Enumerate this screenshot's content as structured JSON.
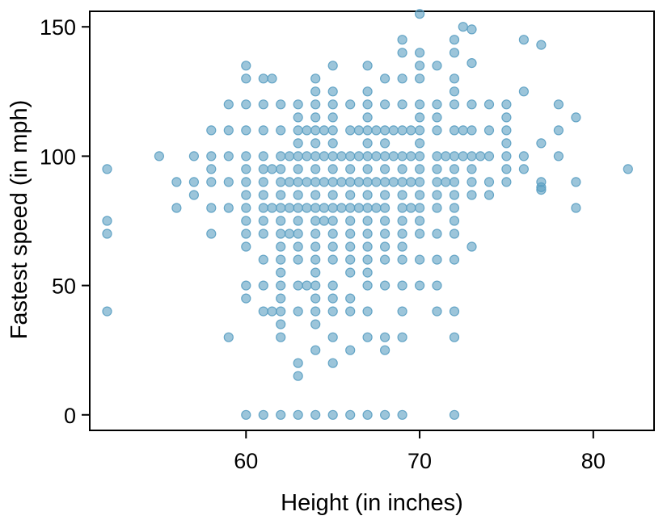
{
  "chart_data": {
    "type": "scatter",
    "title": "",
    "xlabel": "Height (in inches)",
    "ylabel": "Fastest speed (in mph)",
    "xlim": [
      51,
      83.5
    ],
    "ylim": [
      -6,
      156
    ],
    "xticks": [
      60,
      70,
      80
    ],
    "yticks": [
      0,
      50,
      100,
      150
    ],
    "grid": false,
    "legend": "none",
    "point_color": "#5a9fc2",
    "points": [
      [
        52,
        95
      ],
      [
        52,
        75
      ],
      [
        52,
        70
      ],
      [
        52,
        40
      ],
      [
        55,
        100
      ],
      [
        56,
        90
      ],
      [
        56,
        80
      ],
      [
        57,
        100
      ],
      [
        57,
        90
      ],
      [
        57,
        85
      ],
      [
        58,
        110
      ],
      [
        58,
        100
      ],
      [
        58,
        95
      ],
      [
        58,
        90
      ],
      [
        58,
        80
      ],
      [
        58,
        70
      ],
      [
        59,
        120
      ],
      [
        59,
        110
      ],
      [
        59,
        100
      ],
      [
        59,
        90
      ],
      [
        59,
        80
      ],
      [
        59,
        30
      ],
      [
        60,
        135
      ],
      [
        60,
        130
      ],
      [
        60,
        120
      ],
      [
        60,
        110
      ],
      [
        60,
        100
      ],
      [
        60,
        95
      ],
      [
        60,
        90
      ],
      [
        60,
        85
      ],
      [
        60,
        80
      ],
      [
        60,
        75
      ],
      [
        60,
        70
      ],
      [
        60,
        65
      ],
      [
        60,
        50
      ],
      [
        60,
        45
      ],
      [
        60,
        0
      ],
      [
        61,
        130
      ],
      [
        61,
        120
      ],
      [
        61,
        110
      ],
      [
        61,
        100
      ],
      [
        61,
        95
      ],
      [
        61,
        90
      ],
      [
        61,
        85
      ],
      [
        61,
        80
      ],
      [
        61,
        75
      ],
      [
        61,
        70
      ],
      [
        61,
        60
      ],
      [
        61,
        50
      ],
      [
        61,
        40
      ],
      [
        61,
        0
      ],
      [
        61.5,
        130
      ],
      [
        61.5,
        95
      ],
      [
        61.5,
        80
      ],
      [
        61.5,
        40
      ],
      [
        62,
        120
      ],
      [
        62,
        110
      ],
      [
        62,
        100
      ],
      [
        62,
        95
      ],
      [
        62,
        90
      ],
      [
        62,
        85
      ],
      [
        62,
        80
      ],
      [
        62,
        75
      ],
      [
        62,
        70
      ],
      [
        62,
        65
      ],
      [
        62,
        60
      ],
      [
        62,
        55
      ],
      [
        62,
        50
      ],
      [
        62,
        45
      ],
      [
        62,
        40
      ],
      [
        62,
        35
      ],
      [
        62,
        30
      ],
      [
        62,
        0
      ],
      [
        62.5,
        100
      ],
      [
        62.5,
        90
      ],
      [
        62.5,
        80
      ],
      [
        62.5,
        70
      ],
      [
        63,
        120
      ],
      [
        63,
        115
      ],
      [
        63,
        110
      ],
      [
        63,
        105
      ],
      [
        63,
        100
      ],
      [
        63,
        95
      ],
      [
        63,
        90
      ],
      [
        63,
        85
      ],
      [
        63,
        80
      ],
      [
        63,
        75
      ],
      [
        63,
        70
      ],
      [
        63,
        65
      ],
      [
        63,
        60
      ],
      [
        63,
        50
      ],
      [
        63,
        40
      ],
      [
        63,
        20
      ],
      [
        63,
        15
      ],
      [
        63,
        0
      ],
      [
        63.5,
        110
      ],
      [
        63.5,
        100
      ],
      [
        63.5,
        90
      ],
      [
        63.5,
        80
      ],
      [
        63.5,
        50
      ],
      [
        64,
        130
      ],
      [
        64,
        125
      ],
      [
        64,
        120
      ],
      [
        64,
        115
      ],
      [
        64,
        110
      ],
      [
        64,
        105
      ],
      [
        64,
        100
      ],
      [
        64,
        95
      ],
      [
        64,
        90
      ],
      [
        64,
        85
      ],
      [
        64,
        80
      ],
      [
        64,
        75
      ],
      [
        64,
        70
      ],
      [
        64,
        65
      ],
      [
        64,
        60
      ],
      [
        64,
        55
      ],
      [
        64,
        50
      ],
      [
        64,
        45
      ],
      [
        64,
        40
      ],
      [
        64,
        35
      ],
      [
        64,
        25
      ],
      [
        64,
        0
      ],
      [
        64.5,
        110
      ],
      [
        64.5,
        100
      ],
      [
        64.5,
        90
      ],
      [
        64.5,
        80
      ],
      [
        64.5,
        75
      ],
      [
        65,
        135
      ],
      [
        65,
        125
      ],
      [
        65,
        120
      ],
      [
        65,
        115
      ],
      [
        65,
        110
      ],
      [
        65,
        105
      ],
      [
        65,
        100
      ],
      [
        65,
        95
      ],
      [
        65,
        90
      ],
      [
        65,
        85
      ],
      [
        65,
        80
      ],
      [
        65,
        75
      ],
      [
        65,
        70
      ],
      [
        65,
        65
      ],
      [
        65,
        60
      ],
      [
        65,
        50
      ],
      [
        65,
        45
      ],
      [
        65,
        40
      ],
      [
        65,
        30
      ],
      [
        65,
        20
      ],
      [
        65,
        0
      ],
      [
        65.5,
        100
      ],
      [
        65.5,
        90
      ],
      [
        65.5,
        80
      ],
      [
        66,
        120
      ],
      [
        66,
        110
      ],
      [
        66,
        100
      ],
      [
        66,
        95
      ],
      [
        66,
        90
      ],
      [
        66,
        85
      ],
      [
        66,
        80
      ],
      [
        66,
        75
      ],
      [
        66,
        70
      ],
      [
        66,
        65
      ],
      [
        66,
        60
      ],
      [
        66,
        55
      ],
      [
        66,
        45
      ],
      [
        66,
        40
      ],
      [
        66,
        25
      ],
      [
        66,
        0
      ],
      [
        66.5,
        110
      ],
      [
        66.5,
        100
      ],
      [
        66.5,
        90
      ],
      [
        66.5,
        80
      ],
      [
        67,
        135
      ],
      [
        67,
        125
      ],
      [
        67,
        120
      ],
      [
        67,
        115
      ],
      [
        67,
        110
      ],
      [
        67,
        105
      ],
      [
        67,
        100
      ],
      [
        67,
        95
      ],
      [
        67,
        90
      ],
      [
        67,
        85
      ],
      [
        67,
        80
      ],
      [
        67,
        75
      ],
      [
        67,
        70
      ],
      [
        67,
        65
      ],
      [
        67,
        60
      ],
      [
        67,
        55
      ],
      [
        67,
        50
      ],
      [
        67,
        40
      ],
      [
        67,
        30
      ],
      [
        67,
        0
      ],
      [
        67.5,
        110
      ],
      [
        67.5,
        100
      ],
      [
        67.5,
        90
      ],
      [
        67.5,
        80
      ],
      [
        68,
        130
      ],
      [
        68,
        120
      ],
      [
        68,
        110
      ],
      [
        68,
        105
      ],
      [
        68,
        100
      ],
      [
        68,
        95
      ],
      [
        68,
        90
      ],
      [
        68,
        85
      ],
      [
        68,
        80
      ],
      [
        68,
        75
      ],
      [
        68,
        70
      ],
      [
        68,
        65
      ],
      [
        68,
        60
      ],
      [
        68,
        50
      ],
      [
        68,
        30
      ],
      [
        68,
        25
      ],
      [
        68,
        0
      ],
      [
        68.5,
        110
      ],
      [
        68.5,
        100
      ],
      [
        68.5,
        90
      ],
      [
        69,
        145
      ],
      [
        69,
        140
      ],
      [
        69,
        130
      ],
      [
        69,
        120
      ],
      [
        69,
        110
      ],
      [
        69,
        100
      ],
      [
        69,
        95
      ],
      [
        69,
        90
      ],
      [
        69,
        85
      ],
      [
        69,
        80
      ],
      [
        69,
        75
      ],
      [
        69,
        70
      ],
      [
        69,
        65
      ],
      [
        69,
        60
      ],
      [
        69,
        50
      ],
      [
        69,
        40
      ],
      [
        69,
        30
      ],
      [
        69,
        0
      ],
      [
        69.5,
        110
      ],
      [
        69.5,
        100
      ],
      [
        69.5,
        90
      ],
      [
        69.5,
        80
      ],
      [
        70,
        155
      ],
      [
        70,
        140
      ],
      [
        70,
        135
      ],
      [
        70,
        130
      ],
      [
        70,
        120
      ],
      [
        70,
        115
      ],
      [
        70,
        110
      ],
      [
        70,
        105
      ],
      [
        70,
        100
      ],
      [
        70,
        95
      ],
      [
        70,
        90
      ],
      [
        70,
        85
      ],
      [
        70,
        80
      ],
      [
        70,
        75
      ],
      [
        70,
        70
      ],
      [
        70,
        60
      ],
      [
        70,
        50
      ],
      [
        71,
        135
      ],
      [
        71,
        120
      ],
      [
        71,
        115
      ],
      [
        71,
        110
      ],
      [
        71,
        100
      ],
      [
        71,
        95
      ],
      [
        71,
        90
      ],
      [
        71,
        85
      ],
      [
        71,
        80
      ],
      [
        71,
        70
      ],
      [
        71,
        60
      ],
      [
        71,
        50
      ],
      [
        71,
        40
      ],
      [
        71.5,
        100
      ],
      [
        71.5,
        90
      ],
      [
        72,
        145
      ],
      [
        72,
        140
      ],
      [
        72,
        130
      ],
      [
        72,
        125
      ],
      [
        72,
        120
      ],
      [
        72,
        110
      ],
      [
        72,
        100
      ],
      [
        72,
        95
      ],
      [
        72,
        90
      ],
      [
        72,
        85
      ],
      [
        72,
        80
      ],
      [
        72,
        75
      ],
      [
        72,
        70
      ],
      [
        72,
        60
      ],
      [
        72,
        40
      ],
      [
        72,
        30
      ],
      [
        72,
        0
      ],
      [
        72.5,
        150
      ],
      [
        72.5,
        110
      ],
      [
        72.5,
        100
      ],
      [
        73,
        149
      ],
      [
        73,
        136
      ],
      [
        73,
        120
      ],
      [
        73,
        110
      ],
      [
        73,
        100
      ],
      [
        73,
        95
      ],
      [
        73,
        90
      ],
      [
        73,
        85
      ],
      [
        73,
        65
      ],
      [
        73.5,
        100
      ],
      [
        74,
        120
      ],
      [
        74,
        110
      ],
      [
        74,
        100
      ],
      [
        74,
        90
      ],
      [
        74,
        85
      ],
      [
        75,
        120
      ],
      [
        75,
        115
      ],
      [
        75,
        110
      ],
      [
        75,
        105
      ],
      [
        75,
        100
      ],
      [
        75,
        95
      ],
      [
        75,
        90
      ],
      [
        76,
        145
      ],
      [
        76,
        125
      ],
      [
        76,
        100
      ],
      [
        76,
        95
      ],
      [
        77,
        143
      ],
      [
        77,
        105
      ],
      [
        77,
        90
      ],
      [
        77,
        88
      ],
      [
        77,
        87
      ],
      [
        78,
        120
      ],
      [
        78,
        110
      ],
      [
        78,
        100
      ],
      [
        79,
        115
      ],
      [
        79,
        90
      ],
      [
        79,
        80
      ],
      [
        82,
        95
      ]
    ]
  }
}
